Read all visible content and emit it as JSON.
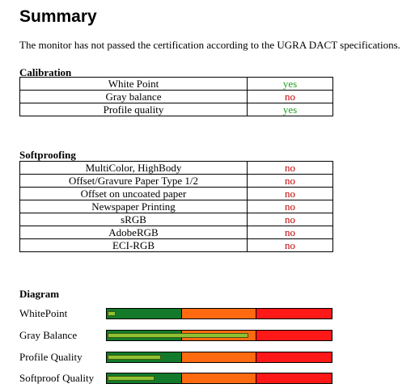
{
  "title": "Summary",
  "intro": "The monitor has not passed the certification according to the UGRA DACT specifications.",
  "colors": {
    "yes": "#1e9e1e",
    "no": "#c00000",
    "bar_green": "#127a2a",
    "bar_orange": "#ff6a10",
    "bar_red": "#ff1818",
    "level_fill": "#8fc232"
  },
  "calibration": {
    "heading": "Calibration",
    "rows": [
      {
        "label": "White Point",
        "result": "yes"
      },
      {
        "label": "Gray balance",
        "result": "no"
      },
      {
        "label": "Profile quality",
        "result": "yes"
      }
    ]
  },
  "softproofing": {
    "heading": "Softproofing",
    "rows": [
      {
        "label": "MultiColor, HighBody",
        "result": "no"
      },
      {
        "label": "Offset/Gravure Paper Type 1/2",
        "result": "no"
      },
      {
        "label": "Offset on uncoated paper",
        "result": "no"
      },
      {
        "label": "Newspaper Printing",
        "result": "no"
      },
      {
        "label": "sRGB",
        "result": "no"
      },
      {
        "label": "AdobeRGB",
        "result": "no"
      },
      {
        "label": "ECI-RGB",
        "result": "no"
      }
    ]
  },
  "diagram": {
    "heading": "Diagram",
    "items": [
      {
        "label": "WhitePoint",
        "level": 0.03
      },
      {
        "label": "Gray Balance",
        "level": 0.62
      },
      {
        "label": "Profile Quality",
        "level": 0.23
      },
      {
        "label": "Softproof Quality",
        "level": 0.2
      }
    ]
  }
}
